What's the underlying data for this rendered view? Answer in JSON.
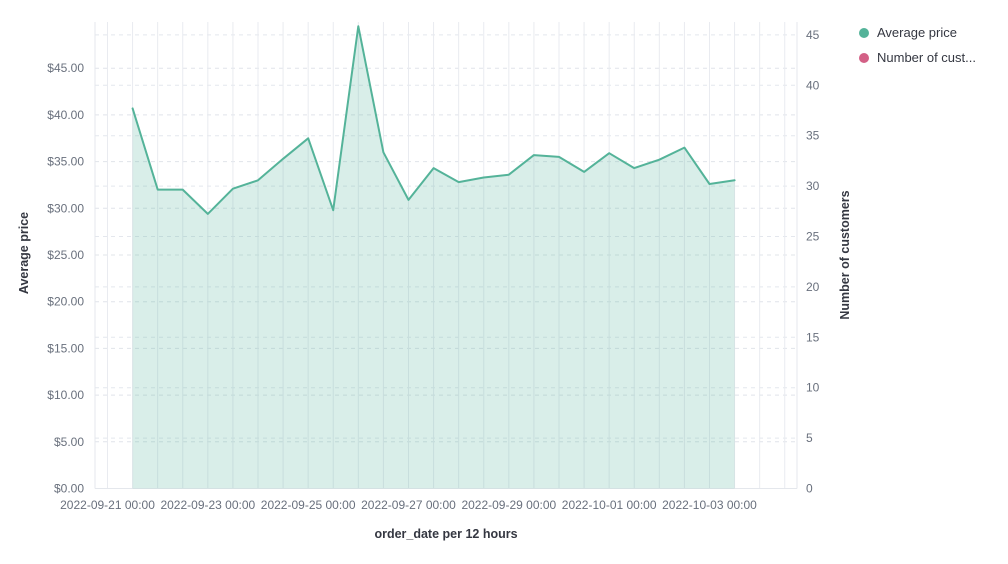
{
  "legend": {
    "items": [
      {
        "label": "Average price",
        "color": "#54B399"
      },
      {
        "label": "Number of cust...",
        "color": "#D36086"
      }
    ]
  },
  "axes": {
    "left": {
      "title": "Average price",
      "ticks": [
        "$0.00",
        "$5.00",
        "$10.00",
        "$15.00",
        "$20.00",
        "$25.00",
        "$30.00",
        "$35.00",
        "$40.00",
        "$45.00"
      ]
    },
    "right": {
      "title": "Number of customers",
      "ticks": [
        "0",
        "5",
        "10",
        "15",
        "20",
        "25",
        "30",
        "35",
        "40",
        "45"
      ]
    },
    "x": {
      "title": "order_date per 12 hours",
      "ticks": [
        "2022-09-21 00:00",
        "2022-09-23 00:00",
        "2022-09-25 00:00",
        "2022-09-27 00:00",
        "2022-09-29 00:00",
        "2022-10-01 00:00",
        "2022-10-03 00:00"
      ]
    }
  },
  "chart_data": {
    "type": "area",
    "x_interval": "12 hours",
    "x": [
      "2022-09-21 12:00",
      "2022-09-22 00:00",
      "2022-09-22 12:00",
      "2022-09-23 00:00",
      "2022-09-23 12:00",
      "2022-09-24 00:00",
      "2022-09-24 12:00",
      "2022-09-25 00:00",
      "2022-09-25 12:00",
      "2022-09-26 00:00",
      "2022-09-26 12:00",
      "2022-09-27 00:00",
      "2022-09-27 12:00",
      "2022-09-28 00:00",
      "2022-09-28 12:00",
      "2022-09-29 00:00",
      "2022-09-29 12:00",
      "2022-09-30 00:00",
      "2022-09-30 12:00",
      "2022-10-01 00:00",
      "2022-10-01 12:00",
      "2022-10-02 00:00",
      "2022-10-02 12:00",
      "2022-10-03 00:00",
      "2022-10-03 12:00"
    ],
    "series": [
      {
        "name": "Average price",
        "axis": "left",
        "color": "#54B399",
        "fill_opacity": 0.22,
        "values": [
          40.7,
          32.0,
          32.0,
          29.4,
          32.1,
          33.0,
          35.3,
          37.5,
          29.8,
          49.5,
          36.0,
          30.9,
          34.3,
          32.8,
          33.3,
          33.6,
          35.7,
          35.5,
          33.9,
          35.9,
          34.3,
          35.2,
          36.5,
          32.6,
          33.0
        ]
      },
      {
        "name": "Number of customers",
        "axis": "right",
        "color": "#D36086",
        "values": []
      }
    ],
    "xlabel": "order_date per 12 hours",
    "ylabel_left": "Average price",
    "ylabel_right": "Number of customers",
    "left_ylim": [
      0,
      49.9
    ],
    "right_ylim": [
      0,
      46.3
    ],
    "grid": true,
    "legend_position": "top-right"
  }
}
